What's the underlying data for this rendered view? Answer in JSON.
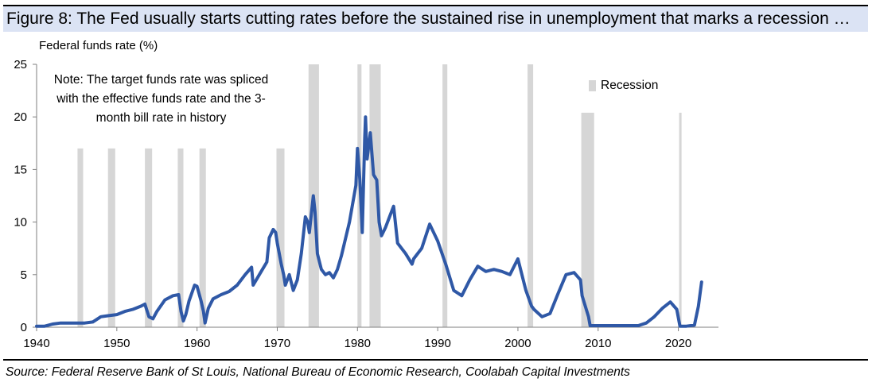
{
  "figure": {
    "title": "Figure 8: The Fed usually starts cutting rates before the sustained rise in unemployment that marks a recession …",
    "source": "Source: Federal Reserve Bank of St Louis, National Bureau of Economic Research, Coolabah Capital Investments",
    "note": "Note: The target funds rate was spliced with the effective funds rate and the 3-month bill rate in history"
  },
  "colors": {
    "line": "#2f58a6",
    "recession": "#d6d6d6",
    "axis": "#000000",
    "title_bg": "#dbe3f4"
  },
  "chart_data": {
    "type": "line",
    "title": "Figure 8: The Fed usually starts cutting rates before the sustained rise in unemployment that marks a recession …",
    "ylabel": "Federal funds rate (%)",
    "xlabel": "",
    "xlim": [
      1940,
      2025
    ],
    "ylim": [
      0,
      25
    ],
    "x_ticks": [
      "1940",
      "1950",
      "1960",
      "1970",
      "1980",
      "1990",
      "2000",
      "2010",
      "2020"
    ],
    "y_ticks": [
      "0",
      "5",
      "10",
      "15",
      "20",
      "25"
    ],
    "legend": [
      {
        "name": "Recession",
        "type": "shaded-area"
      }
    ],
    "legend_position": "top-right",
    "recessions": [
      {
        "start": 1945.1,
        "end": 1945.8,
        "height": 17
      },
      {
        "start": 1948.9,
        "end": 1949.8,
        "height": 17
      },
      {
        "start": 1953.5,
        "end": 1954.4,
        "height": 17
      },
      {
        "start": 1957.6,
        "end": 1958.3,
        "height": 17
      },
      {
        "start": 1960.3,
        "end": 1961.1,
        "height": 17
      },
      {
        "start": 1969.9,
        "end": 1970.9,
        "height": 17
      },
      {
        "start": 1973.9,
        "end": 1975.2,
        "height": 25
      },
      {
        "start": 1980.0,
        "end": 1980.5,
        "height": 25
      },
      {
        "start": 1981.5,
        "end": 1982.9,
        "height": 25
      },
      {
        "start": 1990.6,
        "end": 1991.2,
        "height": 25
      },
      {
        "start": 2001.2,
        "end": 2001.9,
        "height": 25
      },
      {
        "start": 2007.9,
        "end": 2009.5,
        "height": 20.4
      },
      {
        "start": 2020.1,
        "end": 2020.4,
        "height": 20.4
      }
    ],
    "series": [
      {
        "name": "Federal funds rate",
        "points": [
          [
            1940,
            0.1
          ],
          [
            1941,
            0.1
          ],
          [
            1942,
            0.3
          ],
          [
            1943,
            0.4
          ],
          [
            1944,
            0.4
          ],
          [
            1945,
            0.4
          ],
          [
            1946,
            0.4
          ],
          [
            1947,
            0.5
          ],
          [
            1948,
            1.0
          ],
          [
            1949,
            1.1
          ],
          [
            1950,
            1.2
          ],
          [
            1951,
            1.5
          ],
          [
            1952,
            1.7
          ],
          [
            1953,
            2.0
          ],
          [
            1953.5,
            2.2
          ],
          [
            1954,
            1.0
          ],
          [
            1954.5,
            0.8
          ],
          [
            1955,
            1.5
          ],
          [
            1956,
            2.6
          ],
          [
            1957,
            3.0
          ],
          [
            1957.7,
            3.1
          ],
          [
            1958,
            1.5
          ],
          [
            1958.3,
            0.6
          ],
          [
            1958.6,
            1.2
          ],
          [
            1959,
            2.5
          ],
          [
            1959.7,
            4.0
          ],
          [
            1960,
            3.9
          ],
          [
            1960.5,
            2.5
          ],
          [
            1960.8,
            1.5
          ],
          [
            1961,
            0.4
          ],
          [
            1961.4,
            1.8
          ],
          [
            1962,
            2.7
          ],
          [
            1963,
            3.1
          ],
          [
            1964,
            3.4
          ],
          [
            1965,
            4.0
          ],
          [
            1966,
            5.0
          ],
          [
            1966.8,
            5.7
          ],
          [
            1967,
            4.0
          ],
          [
            1968,
            5.3
          ],
          [
            1968.7,
            6.2
          ],
          [
            1969,
            8.5
          ],
          [
            1969.5,
            9.3
          ],
          [
            1969.8,
            9.0
          ],
          [
            1970,
            8.0
          ],
          [
            1970.5,
            6.0
          ],
          [
            1970.8,
            5.0
          ],
          [
            1971,
            4.0
          ],
          [
            1971.5,
            5.0
          ],
          [
            1972,
            3.5
          ],
          [
            1972.5,
            4.5
          ],
          [
            1973,
            7.0
          ],
          [
            1973.5,
            10.5
          ],
          [
            1973.8,
            10.0
          ],
          [
            1974,
            9.0
          ],
          [
            1974.5,
            12.5
          ],
          [
            1974.7,
            11.0
          ],
          [
            1975,
            7.0
          ],
          [
            1975.5,
            5.5
          ],
          [
            1976,
            5.0
          ],
          [
            1976.5,
            5.2
          ],
          [
            1977,
            4.7
          ],
          [
            1977.5,
            5.5
          ],
          [
            1978,
            6.8
          ],
          [
            1979,
            10.0
          ],
          [
            1979.8,
            13.5
          ],
          [
            1980,
            17.0
          ],
          [
            1980.3,
            14.0
          ],
          [
            1980.6,
            9.0
          ],
          [
            1980.9,
            18.0
          ],
          [
            1981,
            20.0
          ],
          [
            1981.2,
            16.0
          ],
          [
            1981.6,
            18.5
          ],
          [
            1982,
            14.5
          ],
          [
            1982.4,
            14.0
          ],
          [
            1982.7,
            10.0
          ],
          [
            1983,
            8.7
          ],
          [
            1983.5,
            9.5
          ],
          [
            1984,
            10.5
          ],
          [
            1984.5,
            11.5
          ],
          [
            1985,
            8.0
          ],
          [
            1986,
            7.0
          ],
          [
            1986.8,
            6.0
          ],
          [
            1987,
            6.5
          ],
          [
            1988,
            7.5
          ],
          [
            1989,
            9.8
          ],
          [
            1990,
            8.2
          ],
          [
            1991,
            6.0
          ],
          [
            1992,
            3.5
          ],
          [
            1993,
            3.0
          ],
          [
            1994,
            4.5
          ],
          [
            1995,
            5.8
          ],
          [
            1996,
            5.3
          ],
          [
            1997,
            5.5
          ],
          [
            1998,
            5.3
          ],
          [
            1999,
            5.0
          ],
          [
            2000,
            6.5
          ],
          [
            2001,
            3.5
          ],
          [
            2001.7,
            2.0
          ],
          [
            2002,
            1.7
          ],
          [
            2003,
            1.0
          ],
          [
            2004,
            1.3
          ],
          [
            2005,
            3.2
          ],
          [
            2006,
            5.0
          ],
          [
            2007,
            5.2
          ],
          [
            2007.8,
            4.5
          ],
          [
            2008,
            3.0
          ],
          [
            2008.8,
            1.0
          ],
          [
            2009,
            0.15
          ],
          [
            2012,
            0.15
          ],
          [
            2015,
            0.15
          ],
          [
            2016,
            0.4
          ],
          [
            2017,
            1.0
          ],
          [
            2018,
            1.8
          ],
          [
            2019,
            2.4
          ],
          [
            2019.8,
            1.7
          ],
          [
            2020.2,
            0.1
          ],
          [
            2021,
            0.1
          ],
          [
            2022,
            0.2
          ],
          [
            2022.5,
            2.0
          ],
          [
            2022.9,
            4.3
          ]
        ]
      }
    ]
  }
}
